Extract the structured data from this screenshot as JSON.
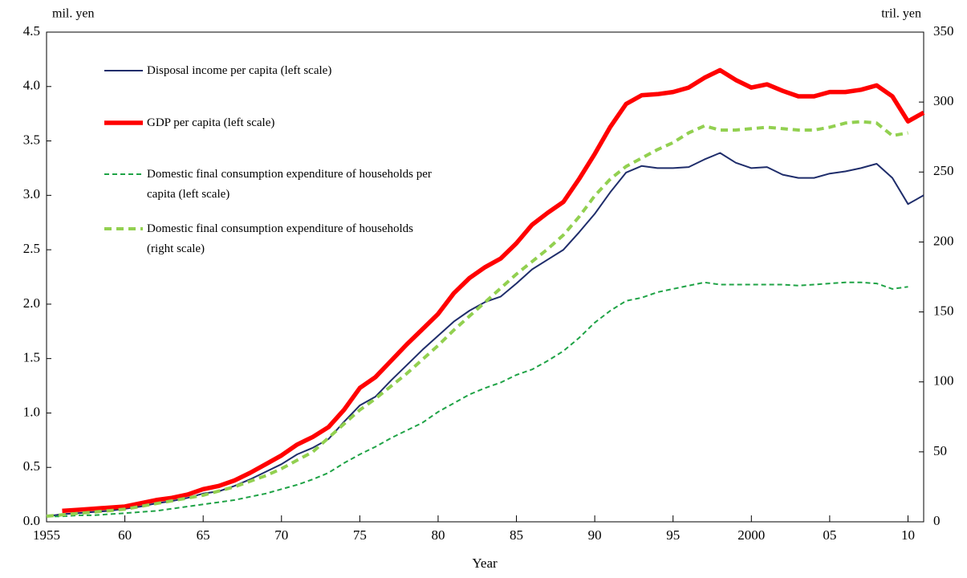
{
  "chart_data": {
    "type": "line",
    "y_label": "mil. yen",
    "y2_label": "tril. yen",
    "x_label": "Year",
    "x": [
      1955,
      1956,
      1957,
      1958,
      1959,
      1960,
      1961,
      1962,
      1963,
      1964,
      1965,
      1966,
      1967,
      1968,
      1969,
      1970,
      1971,
      1972,
      1973,
      1974,
      1975,
      1976,
      1977,
      1978,
      1979,
      1980,
      1981,
      1982,
      1983,
      1984,
      1985,
      1986,
      1987,
      1988,
      1989,
      1990,
      1991,
      1992,
      1993,
      1994,
      1995,
      1996,
      1997,
      1998,
      1999,
      2000,
      2001,
      2002,
      2003,
      2004,
      2005,
      2006,
      2007,
      2008,
      2009,
      2010,
      2011
    ],
    "series": [
      {
        "name": "Disposal income per capita (left scale)",
        "color": "#1f2d6b",
        "dashed": false,
        "values": [
          0.05,
          0.07,
          0.08,
          0.09,
          0.1,
          0.12,
          0.14,
          0.17,
          0.19,
          0.22,
          0.26,
          0.28,
          0.33,
          0.39,
          0.46,
          0.53,
          0.62,
          0.68,
          0.76,
          0.92,
          1.07,
          1.15,
          1.3,
          1.44,
          1.58,
          1.71,
          1.84,
          1.94,
          2.02,
          2.07,
          2.19,
          2.32,
          2.41,
          2.5,
          2.66,
          2.83,
          3.03,
          3.21,
          3.27,
          3.25,
          3.25,
          3.26,
          3.33,
          3.39,
          3.3,
          3.25,
          3.26,
          3.19,
          3.16,
          3.16,
          3.2,
          3.22,
          3.25,
          3.29,
          3.16,
          2.92,
          3.0
        ]
      },
      {
        "name": "GDP per capita (left scale)",
        "color": "#ff0000",
        "dashed": false,
        "values": [
          null,
          0.1,
          0.11,
          0.12,
          0.13,
          0.14,
          0.17,
          0.2,
          0.22,
          0.25,
          0.3,
          0.33,
          0.38,
          0.45,
          0.53,
          0.61,
          0.71,
          0.78,
          0.87,
          1.03,
          1.23,
          1.33,
          1.48,
          1.63,
          1.77,
          1.91,
          2.1,
          2.24,
          2.34,
          2.42,
          2.56,
          2.73,
          2.84,
          2.94,
          3.15,
          3.38,
          3.63,
          3.84,
          3.92,
          3.93,
          3.95,
          3.99,
          4.08,
          4.15,
          4.06,
          3.99,
          4.02,
          3.96,
          3.91,
          3.91,
          3.95,
          3.95,
          3.97,
          4.01,
          3.91,
          3.68,
          3.76
        ]
      },
      {
        "name": "Domestic final consumption expenditure of households per capita (left scale)",
        "color": "#1fa346",
        "dashed": true,
        "values": [
          0.05,
          0.05,
          0.06,
          0.06,
          0.07,
          0.08,
          0.09,
          0.1,
          0.12,
          0.14,
          0.16,
          0.18,
          0.2,
          0.23,
          0.26,
          0.3,
          0.34,
          0.39,
          0.45,
          0.54,
          0.62,
          0.69,
          0.77,
          0.84,
          0.91,
          1.01,
          1.09,
          1.17,
          1.23,
          1.28,
          1.35,
          1.4,
          1.48,
          1.57,
          1.69,
          1.83,
          1.94,
          2.03,
          2.06,
          2.11,
          2.14,
          2.17,
          2.2,
          2.18,
          2.18,
          2.18,
          2.18,
          2.18,
          2.17,
          2.18,
          2.19,
          2.2,
          2.2,
          2.19,
          2.14,
          2.16,
          null
        ]
      },
      {
        "name": "Domestic final consumption expenditure of households (right scale)",
        "color": "#92d050",
        "dashed": true,
        "axis": "y2",
        "values": [
          4,
          5,
          6,
          7,
          8,
          9,
          11,
          13,
          15,
          17,
          19,
          22,
          25,
          29,
          33,
          38,
          44,
          50,
          60,
          70,
          80,
          88,
          97,
          106,
          116,
          126,
          137,
          147,
          157,
          167,
          177,
          186,
          195,
          205,
          218,
          233,
          245,
          254,
          260,
          266,
          271,
          278,
          283,
          280,
          280,
          281,
          282,
          281,
          280,
          280,
          282,
          285,
          286,
          285,
          276,
          278,
          null
        ]
      }
    ],
    "xlim": [
      1955,
      2011
    ],
    "xticks": [
      1955,
      {
        "value": 1960,
        "label": "60"
      },
      {
        "value": 1965,
        "label": "65"
      },
      {
        "value": 1970,
        "label": "70"
      },
      {
        "value": 1975,
        "label": "75"
      },
      {
        "value": 1980,
        "label": "80"
      },
      {
        "value": 1985,
        "label": "85"
      },
      {
        "value": 1990,
        "label": "90"
      },
      {
        "value": 1995,
        "label": "95"
      },
      2000,
      {
        "value": 2005,
        "label": "05"
      },
      {
        "value": 2010,
        "label": "10"
      }
    ],
    "ylim": [
      0,
      4.5
    ],
    "yticks": [
      {
        "value": 0,
        "label": "0.0"
      },
      0.5,
      {
        "value": 1,
        "label": "1.0"
      },
      1.5,
      {
        "value": 2,
        "label": "2.0"
      },
      2.5,
      {
        "value": 3,
        "label": "3.0"
      },
      3.5,
      {
        "value": 4,
        "label": "4.0"
      },
      4.5
    ],
    "y2lim": [
      0,
      350
    ],
    "y2ticks": [
      0,
      50,
      100,
      150,
      200,
      250,
      300,
      350
    ],
    "legend": "upper left"
  }
}
